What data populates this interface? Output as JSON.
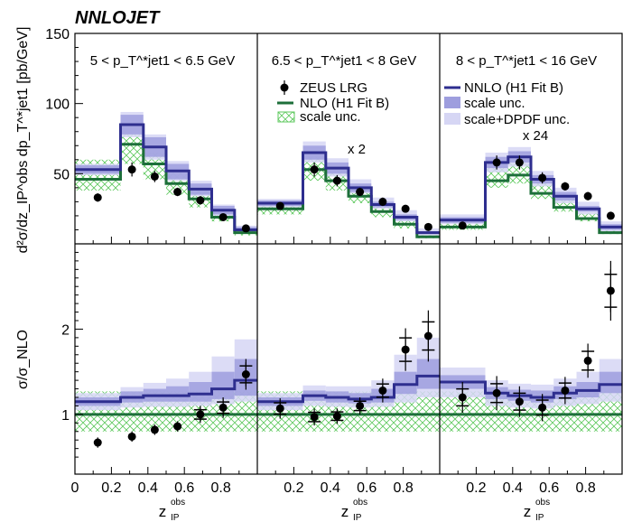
{
  "chart_data": {
    "type": "histogram",
    "title": "NNLOJET",
    "colors": {
      "nnlo": "#2e2e8f",
      "nnlo_scale": "#9e9ede",
      "nnlo_scale_dpdf": "#d6d6f4",
      "nlo": "#1d6f3a",
      "nlo_hatch": "#5cc85c",
      "data": "#000000"
    },
    "x_ticks": [
      "0",
      "0.2",
      "0.4",
      "0.6",
      "0.8"
    ],
    "x_label_main": "z",
    "x_label_sup": "obs",
    "x_label_sub": "IP",
    "upper_ylabel": "d²σ/dz_IP^obs dp_T^*jet1 [pb/GeV]",
    "upper_yticks": [
      "50",
      "100",
      "150"
    ],
    "upper_ylim": [
      0,
      150
    ],
    "lower_ylabel": "σ/σ_NLO",
    "lower_yticks": [
      "1",
      "2"
    ],
    "lower_ylim": [
      0.3,
      3.0
    ],
    "bins": [
      0.0,
      0.25,
      0.375,
      0.5,
      0.625,
      0.75,
      0.875,
      1.0
    ],
    "legend": {
      "zeus": "ZEUS LRG",
      "nlo": "NLO (H1 Fit B)",
      "nlo_scale": "scale unc.",
      "nnlo": "NNLO (H1 Fit B)",
      "nnlo_scale": "scale unc.",
      "nnlo_scale_dpdf": "scale+DPDF unc."
    },
    "panels": [
      {
        "range": "5 < p_T^*jet1 < 6.5 GeV",
        "scale_text": "",
        "nnlo": [
          53,
          85,
          69,
          52,
          39,
          24,
          10
        ],
        "nnlo_lo": [
          50,
          78,
          62,
          46,
          35,
          21,
          9
        ],
        "nnlo_hi": [
          56,
          92,
          76,
          57,
          43,
          27,
          12
        ],
        "nnlo_dlo": [
          49,
          76,
          60,
          45,
          34,
          20,
          8
        ],
        "nnlo_dhi": [
          57,
          94,
          78,
          59,
          45,
          28,
          13
        ],
        "nlo": [
          46,
          71,
          57,
          43,
          32,
          19,
          8
        ],
        "nlo_lo": [
          38,
          57,
          46,
          35,
          26,
          16,
          6
        ],
        "nlo_hi": [
          60,
          78,
          65,
          51,
          39,
          24,
          10
        ],
        "data_x": [
          0.125,
          0.3125,
          0.4375,
          0.5625,
          0.6875,
          0.8125,
          0.9375
        ],
        "data_y": [
          33,
          53,
          48,
          37,
          31,
          19,
          11
        ],
        "data_err": [
          3,
          5,
          4,
          3,
          3,
          2,
          1
        ],
        "ratio_nnlo": [
          1.15,
          1.2,
          1.22,
          1.22,
          1.24,
          1.3,
          1.4
        ],
        "ratio_lo": [
          1.1,
          1.14,
          1.15,
          1.15,
          1.15,
          1.18,
          1.22
        ],
        "ratio_hi": [
          1.2,
          1.27,
          1.3,
          1.33,
          1.38,
          1.5,
          1.65
        ],
        "ratio_dlo": [
          1.05,
          1.08,
          1.09,
          1.09,
          1.1,
          1.12,
          1.15
        ],
        "ratio_dhi": [
          1.25,
          1.32,
          1.37,
          1.42,
          1.5,
          1.68,
          1.88
        ],
        "ratio_nlo_lo": [
          0.8,
          0.8,
          0.8,
          0.8,
          0.8,
          0.8,
          0.8
        ],
        "ratio_nlo_hi": [
          1.27,
          1.27,
          1.27,
          1.27,
          1.27,
          1.27,
          1.27
        ],
        "ratio_data": [
          0.67,
          0.74,
          0.82,
          0.86,
          1.0,
          1.08,
          1.47
        ],
        "ratio_err": [
          0.06,
          0.06,
          0.06,
          0.06,
          0.08,
          0.1,
          0.14
        ],
        "ratio_tot": [
          0,
          0,
          0,
          0,
          0.1,
          0.12,
          0.18
        ]
      },
      {
        "range": "6.5 < p_T^*jet1 < 8 GeV",
        "scale_text": "x 2",
        "nnlo": [
          29,
          65,
          54,
          40,
          28,
          19,
          8
        ],
        "nnlo_lo": [
          27,
          60,
          50,
          37,
          26,
          17,
          7
        ],
        "nnlo_hi": [
          31,
          70,
          58,
          43,
          30,
          21,
          9
        ],
        "nnlo_dlo": [
          26,
          58,
          48,
          36,
          25,
          16,
          6
        ],
        "nnlo_dhi": [
          32,
          73,
          61,
          46,
          33,
          24,
          11
        ],
        "nlo": [
          25,
          53,
          45,
          34,
          23,
          14,
          5
        ],
        "nlo_lo": [
          21,
          45,
          38,
          29,
          19,
          11,
          4
        ],
        "nlo_hi": [
          30,
          62,
          52,
          40,
          28,
          17,
          6
        ],
        "data_x": [
          0.125,
          0.3125,
          0.4375,
          0.5625,
          0.6875,
          0.8125,
          0.9375
        ],
        "data_y": [
          27,
          53,
          45,
          37,
          30,
          25,
          12
        ],
        "data_err": [
          2,
          5,
          4,
          3,
          3,
          2,
          1
        ],
        "ratio_nnlo": [
          1.15,
          1.22,
          1.2,
          1.18,
          1.2,
          1.35,
          1.45
        ],
        "ratio_lo": [
          1.1,
          1.16,
          1.14,
          1.13,
          1.14,
          1.24,
          1.3
        ],
        "ratio_hi": [
          1.2,
          1.28,
          1.27,
          1.25,
          1.3,
          1.5,
          1.65
        ],
        "ratio_dlo": [
          1.05,
          1.1,
          1.09,
          1.08,
          1.09,
          1.14,
          1.2
        ],
        "ratio_dhi": [
          1.25,
          1.34,
          1.33,
          1.33,
          1.4,
          1.7,
          1.9
        ],
        "ratio_nlo_lo": [
          0.8,
          0.8,
          0.8,
          0.8,
          0.8,
          0.8,
          0.8
        ],
        "ratio_nlo_hi": [
          1.27,
          1.27,
          1.27,
          1.27,
          1.27,
          1.27,
          1.27
        ],
        "ratio_data": [
          1.07,
          0.97,
          0.98,
          1.1,
          1.28,
          1.76,
          1.92
        ],
        "ratio_err": [
          0.06,
          0.05,
          0.05,
          0.05,
          0.08,
          0.12,
          0.16
        ],
        "ratio_tot": [
          0.12,
          0.1,
          0.09,
          0.1,
          0.14,
          0.25,
          0.3
        ]
      },
      {
        "range": "8 < p_T^*jet1 < 16 GeV",
        "scale_text": "x 24",
        "nnlo": [
          17,
          58,
          62,
          46,
          34,
          25,
          12
        ],
        "nnlo_lo": [
          15,
          54,
          58,
          43,
          31,
          23,
          10
        ],
        "nnlo_hi": [
          19,
          62,
          66,
          49,
          37,
          27,
          14
        ],
        "nnlo_dlo": [
          14,
          51,
          55,
          41,
          29,
          21,
          9
        ],
        "nnlo_dhi": [
          21,
          65,
          69,
          52,
          40,
          30,
          16
        ],
        "nlo": [
          12,
          45,
          49,
          36,
          26,
          18,
          8
        ],
        "nlo_lo": [
          10,
          40,
          43,
          32,
          23,
          16,
          7
        ],
        "nlo_hi": [
          16,
          55,
          59,
          44,
          32,
          22,
          10
        ],
        "data_x": [
          0.125,
          0.3125,
          0.4375,
          0.5625,
          0.6875,
          0.8125,
          0.9375
        ],
        "data_y": [
          13,
          58,
          58,
          47,
          41,
          34,
          20
        ],
        "data_err": [
          1,
          5,
          5,
          4,
          3,
          3,
          2
        ],
        "ratio_nnlo": [
          1.38,
          1.25,
          1.22,
          1.2,
          1.25,
          1.28,
          1.35
        ],
        "ratio_lo": [
          1.3,
          1.18,
          1.16,
          1.14,
          1.18,
          1.2,
          1.25
        ],
        "ratio_hi": [
          1.46,
          1.32,
          1.29,
          1.28,
          1.33,
          1.38,
          1.5
        ],
        "ratio_dlo": [
          1.2,
          1.1,
          1.08,
          1.07,
          1.1,
          1.12,
          1.15
        ],
        "ratio_dhi": [
          1.55,
          1.4,
          1.36,
          1.35,
          1.42,
          1.5,
          1.65
        ],
        "ratio_nlo_lo": [
          0.8,
          0.8,
          0.8,
          0.8,
          0.8,
          0.8,
          0.8
        ],
        "ratio_nlo_hi": [
          1.27,
          1.27,
          1.27,
          1.27,
          1.27,
          1.27,
          1.27
        ],
        "ratio_data": [
          1.2,
          1.25,
          1.15,
          1.08,
          1.28,
          1.63,
          2.45
        ],
        "ratio_err": [
          0.1,
          0.1,
          0.1,
          0.1,
          0.1,
          0.12,
          0.25
        ],
        "ratio_tot": [
          0.18,
          0.2,
          0.18,
          0.16,
          0.16,
          0.2,
          0.35
        ]
      }
    ]
  }
}
